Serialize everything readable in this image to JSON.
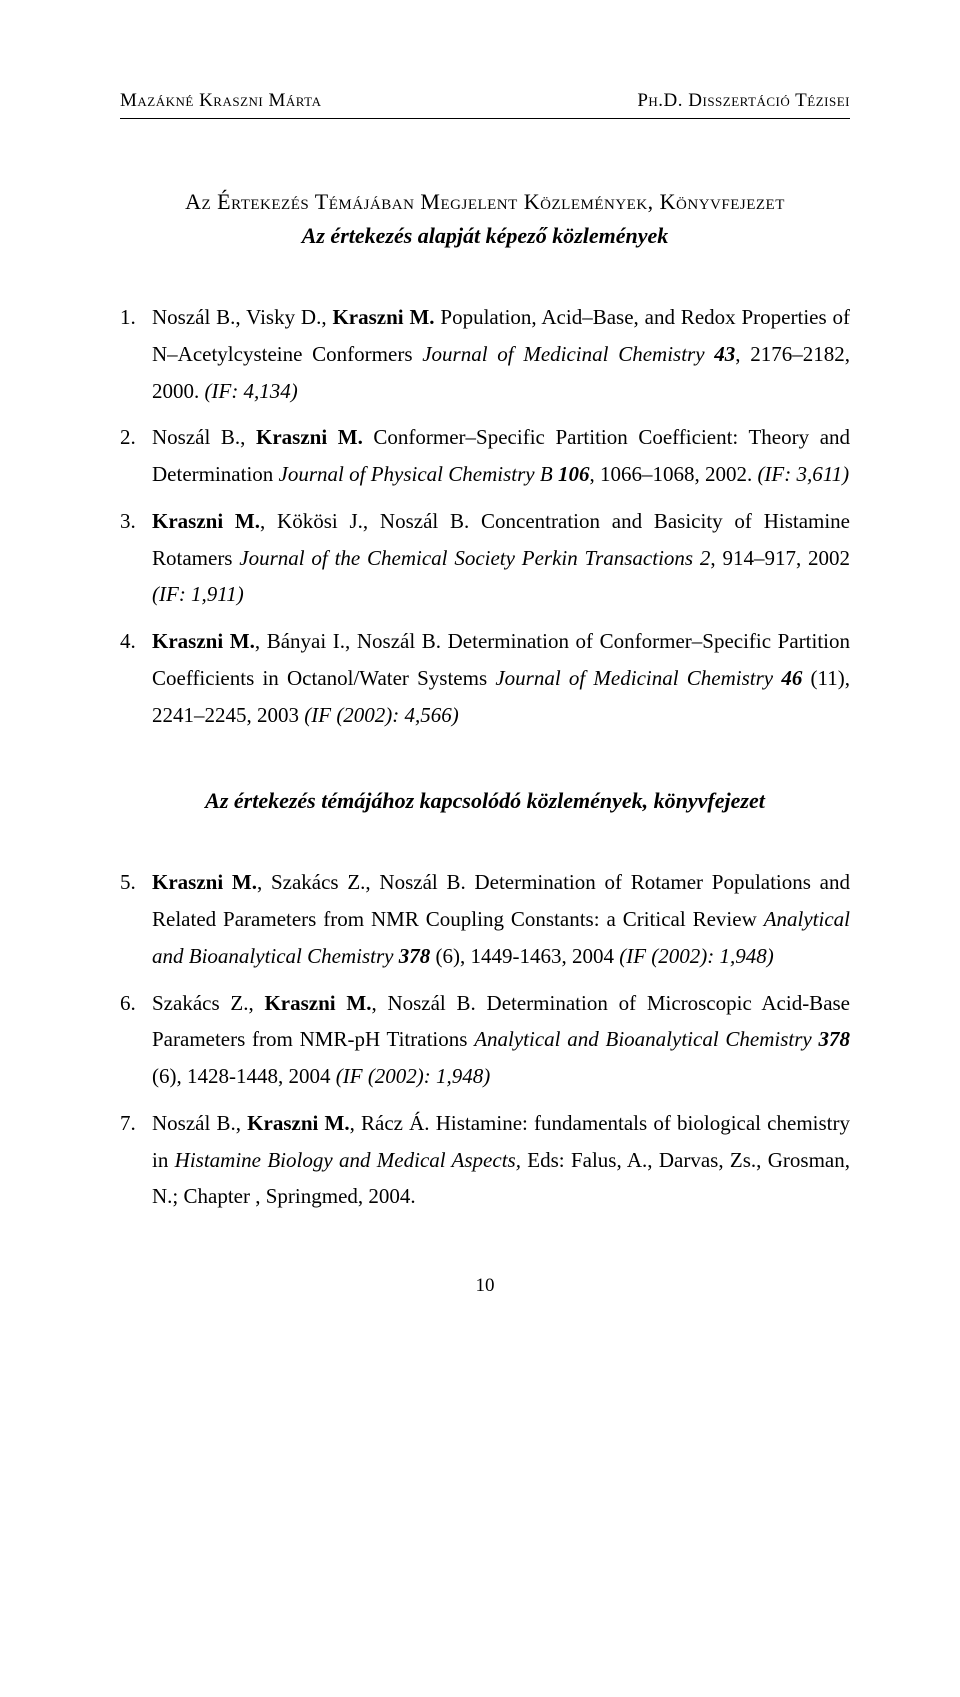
{
  "colors": {
    "text": "#000000",
    "background": "#ffffff",
    "rule": "#000000"
  },
  "typography": {
    "font_family": "Times New Roman",
    "body_fontsize_pt": 16,
    "header_fontsize_pt": 14,
    "line_height": 1.75
  },
  "header": {
    "left": "Mazákné Kraszni Márta",
    "right": "Ph.D. Disszertáció Tézisei"
  },
  "section1": {
    "title": "Az Értekezés Témájában Megjelent Közlemények, Könyvfejezet",
    "subtitle": "Az értekezés alapját képező közlemények"
  },
  "refs1": [
    {
      "num": "1",
      "authors": "Noszál B., Visky D., ",
      "author_bold": "Kraszni M.",
      "title_pre": " Population, Acid–Base, and Redox Properties of N–Acetylcysteine Conformers ",
      "journal": "Journal of Medicinal Chemistry ",
      "vol": "43",
      "pages": ", 2176–2182, 2000. ",
      "if": "(IF: 4,134)"
    },
    {
      "num": "2",
      "authors": "Noszál B., ",
      "author_bold": "Kraszni M.",
      "title_pre": " Conformer–Specific Partition Coefficient: Theory and Determination ",
      "journal": "Journal of Physical Chemistry B ",
      "vol": "106",
      "pages": ", 1066–1068, 2002. ",
      "if": "(IF: 3,611)"
    },
    {
      "num": "3",
      "author_bold": "Kraszni M.",
      "authors_post": ", Kökösi J., Noszál B.",
      "title_pre": " Concentration and Basicity of Histamine Rotamers ",
      "journal": "Journal of the Chemical Society Perkin Transactions 2",
      "pages": ", 914–917, 2002 ",
      "if": "(IF: 1,911)"
    },
    {
      "num": "4",
      "author_bold": "Kraszni M.",
      "authors_post": ", Bányai I., Noszál B.",
      "title_pre": " Determination of Conformer–Specific Partition Coefficients in Octanol/Water Systems ",
      "journal": "Journal of Medicinal Chemistry ",
      "vol": "46",
      "issue": " (11)",
      "pages": ", 2241–2245, 2003 ",
      "if": "(IF (2002): 4,566)"
    }
  ],
  "section2": {
    "subtitle": "Az értekezés témájához kapcsolódó közlemények, könyvfejezet"
  },
  "refs2": [
    {
      "num": "5",
      "author_bold": "Kraszni M.",
      "authors_post": ", Szakács Z., Noszál B.",
      "title_pre": " Determination of Rotamer Populations and Related Parameters from NMR Coupling Constants: a Critical Review ",
      "journal": "Analytical and Bioanalytical Chemistry ",
      "vol": "378",
      "issue": " (6)",
      "pages": ", 1449-1463, 2004 ",
      "if": "(IF (2002): 1,948)"
    },
    {
      "num": "6",
      "authors": "Szakács Z., ",
      "author_bold": "Kraszni M.",
      "authors_post": ", Noszál B.",
      "title_pre": " Determination of Microscopic Acid-Base Parameters from NMR-pH Titrations ",
      "journal": "Analytical and Bioanalytical Chemistry ",
      "vol": "378",
      "issue": " (6)",
      "pages": ", 1428-1448, 2004 ",
      "if": "(IF (2002): 1,948)"
    },
    {
      "num": "7",
      "authors": "Noszál B., ",
      "author_bold": "Kraszni M.",
      "authors_post": ", Rácz Á.",
      "title_pre": " Histamine: fundamentals of biological chemistry in ",
      "journal": "Histamine Biology and Medical Aspects,",
      "tail": " Eds: Falus, A., Darvas, Zs., Grosman, N.; Chapter , Springmed, 2004."
    }
  ],
  "page_number": "10"
}
